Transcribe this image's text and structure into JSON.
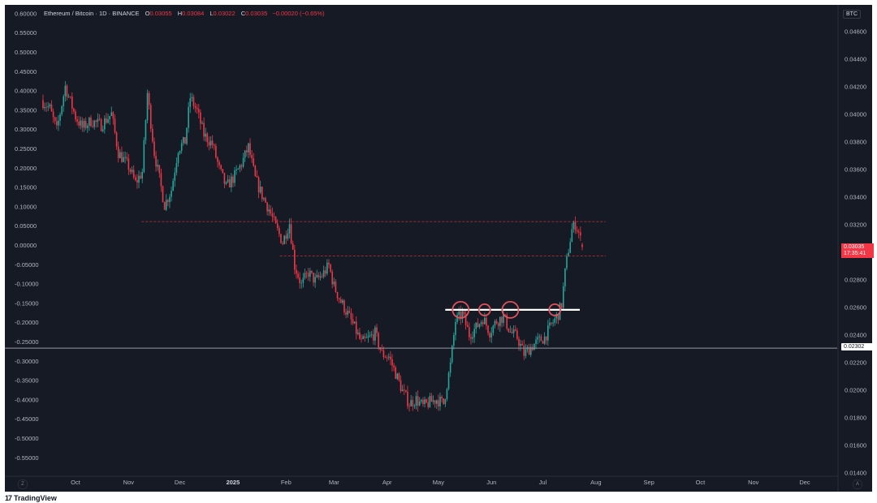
{
  "header": {
    "symbol": "Ethereum / Bitcoin · 1D · BINANCE",
    "open_label": "O",
    "open": "0.03055",
    "high_label": "H",
    "high": "0.03084",
    "low_label": "L",
    "low": "0.03022",
    "close_label": "C",
    "close": "0.03035",
    "change": "−0.00020 (−0.65%)"
  },
  "currency": "BTC",
  "last_price": {
    "value": "0.03035",
    "countdown": "17:35:41",
    "color": "#f23645"
  },
  "crosshair_price": "0.02302",
  "branding": {
    "logo": "17",
    "name": "TradingView"
  },
  "corner_buttons": {
    "left": "Z",
    "right": "A"
  },
  "colors": {
    "up": "#26a69a",
    "down": "#f23645",
    "background": "#161a25",
    "text": "#b2b5be",
    "annotation": "#ffffff"
  },
  "chart_data": {
    "type": "candlestick",
    "title": "Ethereum / Bitcoin · 1D · BINANCE",
    "right_axis": {
      "label": "BTC",
      "ticks": [
        "0.04600",
        "0.04400",
        "0.04200",
        "0.04000",
        "0.03800",
        "0.03600",
        "0.03400",
        "0.03200",
        "0.02800",
        "0.02600",
        "0.02400",
        "0.02200",
        "0.02000",
        "0.01800",
        "0.01600",
        "0.01400"
      ],
      "range": [
        0.0137,
        0.047
      ]
    },
    "left_axis": {
      "ticks": [
        "0.60000",
        "0.55000",
        "0.50000",
        "0.45000",
        "0.40000",
        "0.35000",
        "0.30000",
        "0.25000",
        "0.20000",
        "0.15000",
        "0.10000",
        "0.05000",
        "0.00000",
        "-0.05000",
        "-0.10000",
        "-0.15000",
        "-0.20000",
        "-0.25000",
        "-0.30000",
        "-0.35000",
        "-0.40000",
        "-0.45000",
        "-0.50000",
        "-0.55000"
      ],
      "range": [
        -0.58,
        0.63
      ]
    },
    "x_axis": {
      "ticks": [
        "Oct",
        "Nov",
        "Dec",
        "2025",
        "Feb",
        "Mar",
        "Apr",
        "May",
        "Jun",
        "Jul",
        "Aug",
        "Sep",
        "Oct",
        "Nov",
        "Dec"
      ],
      "tick_dates": [
        "2024-10-01",
        "2024-11-01",
        "2024-12-01",
        "2025-01-01",
        "2025-02-01",
        "2025-03-01",
        "2025-04-01",
        "2025-05-01",
        "2025-06-01",
        "2025-07-01",
        "2025-08-01",
        "2025-09-01",
        "2025-10-01",
        "2025-11-01",
        "2025-12-01"
      ]
    },
    "price_path": [
      [
        "2024-09-11",
        0.041
      ],
      [
        "2024-09-16",
        0.0404
      ],
      [
        "2024-09-20",
        0.0388
      ],
      [
        "2024-09-25",
        0.042
      ],
      [
        "2024-10-01",
        0.0398
      ],
      [
        "2024-10-05",
        0.039
      ],
      [
        "2024-10-10",
        0.0395
      ],
      [
        "2024-10-16",
        0.0392
      ],
      [
        "2024-10-22",
        0.04
      ],
      [
        "2024-10-26",
        0.0372
      ],
      [
        "2024-11-01",
        0.0362
      ],
      [
        "2024-11-05",
        0.035
      ],
      [
        "2024-11-09",
        0.0358
      ],
      [
        "2024-11-12",
        0.0415
      ],
      [
        "2024-11-16",
        0.0372
      ],
      [
        "2024-11-22",
        0.0334
      ],
      [
        "2024-11-26",
        0.0345
      ],
      [
        "2024-11-30",
        0.0375
      ],
      [
        "2024-12-04",
        0.038
      ],
      [
        "2024-12-07",
        0.0412
      ],
      [
        "2024-12-11",
        0.0402
      ],
      [
        "2024-12-15",
        0.0385
      ],
      [
        "2024-12-20",
        0.0378
      ],
      [
        "2024-12-24",
        0.036
      ],
      [
        "2024-12-28",
        0.0347
      ],
      [
        "2025-01-02",
        0.0355
      ],
      [
        "2025-01-06",
        0.0364
      ],
      [
        "2025-01-10",
        0.0376
      ],
      [
        "2025-01-14",
        0.0353
      ],
      [
        "2025-01-18",
        0.0341
      ],
      [
        "2025-01-22",
        0.0331
      ],
      [
        "2025-01-26",
        0.0318
      ],
      [
        "2025-01-30",
        0.0307
      ],
      [
        "2025-02-03",
        0.0321
      ],
      [
        "2025-02-06",
        0.029
      ],
      [
        "2025-02-10",
        0.0276
      ],
      [
        "2025-02-14",
        0.0285
      ],
      [
        "2025-02-18",
        0.0279
      ],
      [
        "2025-02-22",
        0.0283
      ],
      [
        "2025-02-26",
        0.029
      ],
      [
        "2025-03-01",
        0.0275
      ],
      [
        "2025-03-05",
        0.0264
      ],
      [
        "2025-03-09",
        0.0255
      ],
      [
        "2025-03-13",
        0.0245
      ],
      [
        "2025-03-17",
        0.0234
      ],
      [
        "2025-03-21",
        0.0237
      ],
      [
        "2025-03-25",
        0.0241
      ],
      [
        "2025-03-29",
        0.0226
      ],
      [
        "2025-04-02",
        0.0224
      ],
      [
        "2025-04-06",
        0.0212
      ],
      [
        "2025-04-10",
        0.0199
      ],
      [
        "2025-04-14",
        0.019
      ],
      [
        "2025-04-18",
        0.0193
      ],
      [
        "2025-04-22",
        0.0188
      ],
      [
        "2025-04-26",
        0.0191
      ],
      [
        "2025-04-30",
        0.0193
      ],
      [
        "2025-05-04",
        0.019
      ],
      [
        "2025-05-08",
        0.0218
      ],
      [
        "2025-05-11",
        0.025
      ],
      [
        "2025-05-15",
        0.0255
      ],
      [
        "2025-05-19",
        0.024
      ],
      [
        "2025-05-23",
        0.0245
      ],
      [
        "2025-05-27",
        0.0252
      ],
      [
        "2025-05-31",
        0.0242
      ],
      [
        "2025-06-04",
        0.025
      ],
      [
        "2025-06-08",
        0.0253
      ],
      [
        "2025-06-12",
        0.0242
      ],
      [
        "2025-06-16",
        0.0238
      ],
      [
        "2025-06-20",
        0.0226
      ],
      [
        "2025-06-24",
        0.0231
      ],
      [
        "2025-06-28",
        0.0235
      ],
      [
        "2025-07-02",
        0.0238
      ],
      [
        "2025-07-06",
        0.0247
      ],
      [
        "2025-07-10",
        0.0255
      ],
      [
        "2025-07-12",
        0.0262
      ],
      [
        "2025-07-14",
        0.0285
      ],
      [
        "2025-07-16",
        0.0302
      ],
      [
        "2025-07-18",
        0.0316
      ],
      [
        "2025-07-20",
        0.032
      ],
      [
        "2025-07-22",
        0.0314
      ],
      [
        "2025-07-24",
        0.0304
      ]
    ],
    "candle_count": 320,
    "last_candle": {
      "date": "2025-07-24",
      "open": 0.03055,
      "high": 0.03084,
      "low": 0.03022,
      "close": 0.03035
    }
  },
  "annotations": {
    "resistance_upper": 0.0322,
    "resistance_lower": 0.0297,
    "horizontal_gray": 0.02302,
    "white_level": 0.0258,
    "circle_dates": [
      "2025-05-14",
      "2025-05-28",
      "2025-06-12",
      "2025-07-08"
    ],
    "resistance_start_dates": [
      "2024-11-01",
      "2025-02-05"
    ],
    "white_level_start": "2025-05-05"
  }
}
